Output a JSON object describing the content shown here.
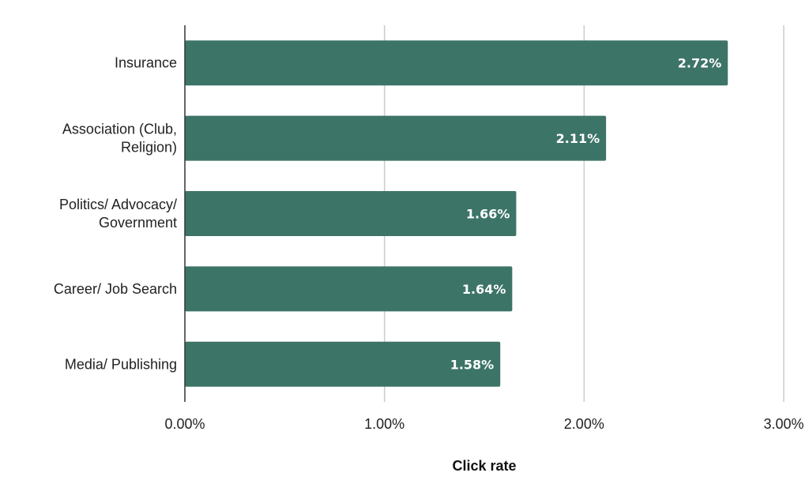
{
  "chart_data": {
    "type": "bar",
    "orientation": "horizontal",
    "categories": [
      [
        "Insurance"
      ],
      [
        "Association (Club,",
        "Religion)"
      ],
      [
        "Politics/ Advocacy/",
        "Government"
      ],
      [
        "Career/ Job Search"
      ],
      [
        "Media/ Publishing"
      ]
    ],
    "values": [
      2.72,
      2.11,
      1.66,
      1.64,
      1.58
    ],
    "data_labels": [
      "2.72%",
      "2.11%",
      "1.66%",
      "1.64%",
      "1.58%"
    ],
    "xlim": [
      0,
      3
    ],
    "ticks": [
      0,
      1,
      2,
      3
    ],
    "tick_labels": [
      "0.00%",
      "1.00%",
      "2.00%",
      "3.00%"
    ],
    "xlabel": "Click rate",
    "ylabel": "",
    "title": "",
    "grid": "vertical",
    "legend": "none",
    "colors": {
      "bar": "#3d7468",
      "grid": "#cccccc",
      "axis": "#333333"
    }
  }
}
